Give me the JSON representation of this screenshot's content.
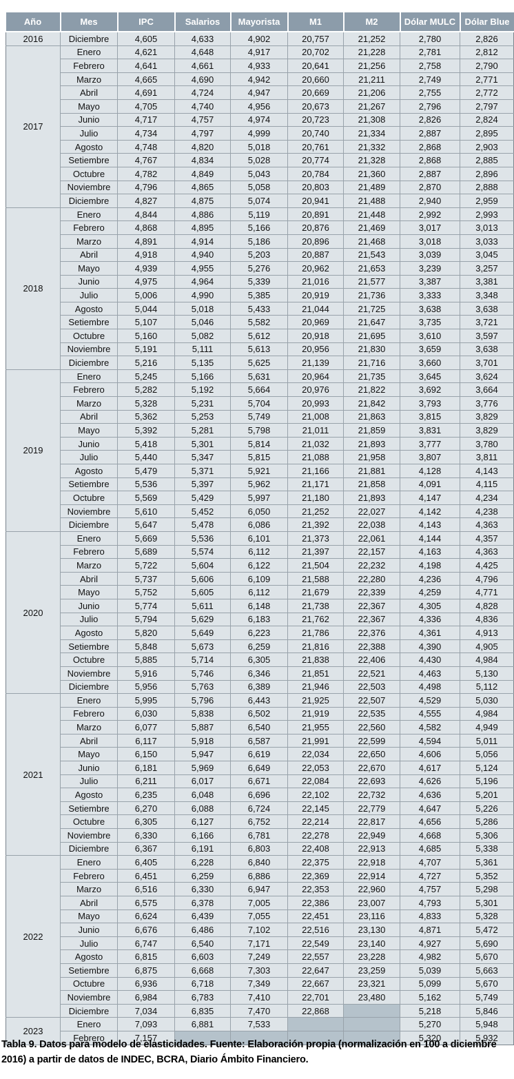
{
  "colors": {
    "header_bg": "#8c9caa",
    "header_text": "#ffffff",
    "row_bg": "#dee4e8",
    "empty_bg": "#b5c2cb",
    "grid": "#98a2aa",
    "outer": "#79838c",
    "outer_soft": "#98a2aa"
  },
  "caption": "Tabla 9. Datos para modelo de elasticidades. Fuente: Elaboración propia (normalización en 100 a diciembre 2016) a partir de datos de INDEC, BCRA, Diario Ámbito Financiero.",
  "table": {
    "columns": [
      "Año",
      "Mes",
      "IPC",
      "Salarios",
      "Mayorista",
      "M1",
      "M2",
      "Dólar MULC",
      "Dólar Blue"
    ],
    "groups": [
      {
        "year": "2016",
        "rows": [
          {
            "mes": "Diciembre",
            "v": [
              "4,605",
              "4,633",
              "4,902",
              "20,757",
              "21,252",
              "2,780",
              "2,826"
            ]
          }
        ]
      },
      {
        "year": "2017",
        "rows": [
          {
            "mes": "Enero",
            "v": [
              "4,621",
              "4,648",
              "4,917",
              "20,702",
              "21,228",
              "2,781",
              "2,812"
            ]
          },
          {
            "mes": "Febrero",
            "v": [
              "4,641",
              "4,661",
              "4,933",
              "20,641",
              "21,256",
              "2,758",
              "2,790"
            ]
          },
          {
            "mes": "Marzo",
            "v": [
              "4,665",
              "4,690",
              "4,942",
              "20,660",
              "21,211",
              "2,749",
              "2,771"
            ]
          },
          {
            "mes": "Abril",
            "v": [
              "4,691",
              "4,724",
              "4,947",
              "20,669",
              "21,206",
              "2,755",
              "2,772"
            ]
          },
          {
            "mes": "Mayo",
            "v": [
              "4,705",
              "4,740",
              "4,956",
              "20,673",
              "21,267",
              "2,796",
              "2,797"
            ]
          },
          {
            "mes": "Junio",
            "v": [
              "4,717",
              "4,757",
              "4,974",
              "20,723",
              "21,308",
              "2,826",
              "2,824"
            ]
          },
          {
            "mes": "Julio",
            "v": [
              "4,734",
              "4,797",
              "4,999",
              "20,740",
              "21,334",
              "2,887",
              "2,895"
            ]
          },
          {
            "mes": "Agosto",
            "v": [
              "4,748",
              "4,820",
              "5,018",
              "20,761",
              "21,332",
              "2,868",
              "2,903"
            ]
          },
          {
            "mes": "Setiembre",
            "v": [
              "4,767",
              "4,834",
              "5,028",
              "20,774",
              "21,328",
              "2,868",
              "2,885"
            ]
          },
          {
            "mes": "Octubre",
            "v": [
              "4,782",
              "4,849",
              "5,043",
              "20,784",
              "21,360",
              "2,887",
              "2,896"
            ]
          },
          {
            "mes": "Noviembre",
            "v": [
              "4,796",
              "4,865",
              "5,058",
              "20,803",
              "21,489",
              "2,870",
              "2,888"
            ]
          },
          {
            "mes": "Diciembre",
            "v": [
              "4,827",
              "4,875",
              "5,074",
              "20,941",
              "21,488",
              "2,940",
              "2,959"
            ]
          }
        ]
      },
      {
        "year": "2018",
        "rows": [
          {
            "mes": "Enero",
            "v": [
              "4,844",
              "4,886",
              "5,119",
              "20,891",
              "21,448",
              "2,992",
              "2,993"
            ]
          },
          {
            "mes": "Febrero",
            "v": [
              "4,868",
              "4,895",
              "5,166",
              "20,876",
              "21,469",
              "3,017",
              "3,013"
            ]
          },
          {
            "mes": "Marzo",
            "v": [
              "4,891",
              "4,914",
              "5,186",
              "20,896",
              "21,468",
              "3,018",
              "3,033"
            ]
          },
          {
            "mes": "Abril",
            "v": [
              "4,918",
              "4,940",
              "5,203",
              "20,887",
              "21,543",
              "3,039",
              "3,045"
            ]
          },
          {
            "mes": "Mayo",
            "v": [
              "4,939",
              "4,955",
              "5,276",
              "20,962",
              "21,653",
              "3,239",
              "3,257"
            ]
          },
          {
            "mes": "Junio",
            "v": [
              "4,975",
              "4,964",
              "5,339",
              "21,016",
              "21,577",
              "3,387",
              "3,381"
            ]
          },
          {
            "mes": "Julio",
            "v": [
              "5,006",
              "4,990",
              "5,385",
              "20,919",
              "21,736",
              "3,333",
              "3,348"
            ]
          },
          {
            "mes": "Agosto",
            "v": [
              "5,044",
              "5,018",
              "5,433",
              "21,044",
              "21,725",
              "3,638",
              "3,638"
            ]
          },
          {
            "mes": "Setiembre",
            "v": [
              "5,107",
              "5,046",
              "5,582",
              "20,969",
              "21,647",
              "3,735",
              "3,721"
            ]
          },
          {
            "mes": "Octubre",
            "v": [
              "5,160",
              "5,082",
              "5,612",
              "20,918",
              "21,695",
              "3,610",
              "3,597"
            ]
          },
          {
            "mes": "Noviembre",
            "v": [
              "5,191",
              "5,111",
              "5,613",
              "20,956",
              "21,830",
              "3,659",
              "3,638"
            ]
          },
          {
            "mes": "Diciembre",
            "v": [
              "5,216",
              "5,135",
              "5,625",
              "21,139",
              "21,716",
              "3,660",
              "3,701"
            ]
          }
        ]
      },
      {
        "year": "2019",
        "rows": [
          {
            "mes": "Enero",
            "v": [
              "5,245",
              "5,166",
              "5,631",
              "20,964",
              "21,735",
              "3,645",
              "3,624"
            ]
          },
          {
            "mes": "Febrero",
            "v": [
              "5,282",
              "5,192",
              "5,664",
              "20,976",
              "21,822",
              "3,692",
              "3,664"
            ]
          },
          {
            "mes": "Marzo",
            "v": [
              "5,328",
              "5,231",
              "5,704",
              "20,993",
              "21,842",
              "3,793",
              "3,776"
            ]
          },
          {
            "mes": "Abril",
            "v": [
              "5,362",
              "5,253",
              "5,749",
              "21,008",
              "21,863",
              "3,815",
              "3,829"
            ]
          },
          {
            "mes": "Mayo",
            "v": [
              "5,392",
              "5,281",
              "5,798",
              "21,011",
              "21,859",
              "3,831",
              "3,829"
            ]
          },
          {
            "mes": "Junio",
            "v": [
              "5,418",
              "5,301",
              "5,814",
              "21,032",
              "21,893",
              "3,777",
              "3,780"
            ]
          },
          {
            "mes": "Julio",
            "v": [
              "5,440",
              "5,347",
              "5,815",
              "21,088",
              "21,958",
              "3,807",
              "3,811"
            ]
          },
          {
            "mes": "Agosto",
            "v": [
              "5,479",
              "5,371",
              "5,921",
              "21,166",
              "21,881",
              "4,128",
              "4,143"
            ]
          },
          {
            "mes": "Setiembre",
            "v": [
              "5,536",
              "5,397",
              "5,962",
              "21,171",
              "21,858",
              "4,091",
              "4,115"
            ]
          },
          {
            "mes": "Octubre",
            "v": [
              "5,569",
              "5,429",
              "5,997",
              "21,180",
              "21,893",
              "4,147",
              "4,234"
            ]
          },
          {
            "mes": "Noviembre",
            "v": [
              "5,610",
              "5,452",
              "6,050",
              "21,252",
              "22,027",
              "4,142",
              "4,238"
            ]
          },
          {
            "mes": "Diciembre",
            "v": [
              "5,647",
              "5,478",
              "6,086",
              "21,392",
              "22,038",
              "4,143",
              "4,363"
            ]
          }
        ]
      },
      {
        "year": "2020",
        "rows": [
          {
            "mes": "Enero",
            "v": [
              "5,669",
              "5,536",
              "6,101",
              "21,373",
              "22,061",
              "4,144",
              "4,357"
            ]
          },
          {
            "mes": "Febrero",
            "v": [
              "5,689",
              "5,574",
              "6,112",
              "21,397",
              "22,157",
              "4,163",
              "4,363"
            ]
          },
          {
            "mes": "Marzo",
            "v": [
              "5,722",
              "5,604",
              "6,122",
              "21,504",
              "22,232",
              "4,198",
              "4,425"
            ]
          },
          {
            "mes": "Abril",
            "v": [
              "5,737",
              "5,606",
              "6,109",
              "21,588",
              "22,280",
              "4,236",
              "4,796"
            ]
          },
          {
            "mes": "Mayo",
            "v": [
              "5,752",
              "5,605",
              "6,112",
              "21,679",
              "22,339",
              "4,259",
              "4,771"
            ]
          },
          {
            "mes": "Junio",
            "v": [
              "5,774",
              "5,611",
              "6,148",
              "21,738",
              "22,367",
              "4,305",
              "4,828"
            ]
          },
          {
            "mes": "Julio",
            "v": [
              "5,794",
              "5,629",
              "6,183",
              "21,762",
              "22,367",
              "4,336",
              "4,836"
            ]
          },
          {
            "mes": "Agosto",
            "v": [
              "5,820",
              "5,649",
              "6,223",
              "21,786",
              "22,376",
              "4,361",
              "4,913"
            ]
          },
          {
            "mes": "Setiembre",
            "v": [
              "5,848",
              "5,673",
              "6,259",
              "21,816",
              "22,388",
              "4,390",
              "4,905"
            ]
          },
          {
            "mes": "Octubre",
            "v": [
              "5,885",
              "5,714",
              "6,305",
              "21,838",
              "22,406",
              "4,430",
              "4,984"
            ]
          },
          {
            "mes": "Noviembre",
            "v": [
              "5,916",
              "5,746",
              "6,346",
              "21,851",
              "22,521",
              "4,463",
              "5,130"
            ]
          },
          {
            "mes": "Diciembre",
            "v": [
              "5,956",
              "5,763",
              "6,389",
              "21,946",
              "22,503",
              "4,498",
              "5,112"
            ]
          }
        ]
      },
      {
        "year": "2021",
        "rows": [
          {
            "mes": "Enero",
            "v": [
              "5,995",
              "5,796",
              "6,443",
              "21,925",
              "22,507",
              "4,529",
              "5,030"
            ]
          },
          {
            "mes": "Febrero",
            "v": [
              "6,030",
              "5,838",
              "6,502",
              "21,919",
              "22,535",
              "4,555",
              "4,984"
            ]
          },
          {
            "mes": "Marzo",
            "v": [
              "6,077",
              "5,887",
              "6,540",
              "21,955",
              "22,560",
              "4,582",
              "4,949"
            ]
          },
          {
            "mes": "Abril",
            "v": [
              "6,117",
              "5,918",
              "6,587",
              "21,991",
              "22,599",
              "4,594",
              "5,011"
            ]
          },
          {
            "mes": "Mayo",
            "v": [
              "6,150",
              "5,947",
              "6,619",
              "22,034",
              "22,650",
              "4,606",
              "5,056"
            ]
          },
          {
            "mes": "Junio",
            "v": [
              "6,181",
              "5,969",
              "6,649",
              "22,053",
              "22,670",
              "4,617",
              "5,124"
            ]
          },
          {
            "mes": "Julio",
            "v": [
              "6,211",
              "6,017",
              "6,671",
              "22,084",
              "22,693",
              "4,626",
              "5,196"
            ]
          },
          {
            "mes": "Agosto",
            "v": [
              "6,235",
              "6,048",
              "6,696",
              "22,102",
              "22,732",
              "4,636",
              "5,201"
            ]
          },
          {
            "mes": "Setiembre",
            "v": [
              "6,270",
              "6,088",
              "6,724",
              "22,145",
              "22,779",
              "4,647",
              "5,226"
            ]
          },
          {
            "mes": "Octubre",
            "v": [
              "6,305",
              "6,127",
              "6,752",
              "22,214",
              "22,817",
              "4,656",
              "5,286"
            ]
          },
          {
            "mes": "Noviembre",
            "v": [
              "6,330",
              "6,166",
              "6,781",
              "22,278",
              "22,949",
              "4,668",
              "5,306"
            ]
          },
          {
            "mes": "Diciembre",
            "v": [
              "6,367",
              "6,191",
              "6,803",
              "22,408",
              "22,913",
              "4,685",
              "5,338"
            ]
          }
        ]
      },
      {
        "year": "2022",
        "rows": [
          {
            "mes": "Enero",
            "v": [
              "6,405",
              "6,228",
              "6,840",
              "22,375",
              "22,918",
              "4,707",
              "5,361"
            ]
          },
          {
            "mes": "Febrero",
            "v": [
              "6,451",
              "6,259",
              "6,886",
              "22,369",
              "22,914",
              "4,727",
              "5,352"
            ]
          },
          {
            "mes": "Marzo",
            "v": [
              "6,516",
              "6,330",
              "6,947",
              "22,353",
              "22,960",
              "4,757",
              "5,298"
            ]
          },
          {
            "mes": "Abril",
            "v": [
              "6,575",
              "6,378",
              "7,005",
              "22,386",
              "23,007",
              "4,793",
              "5,301"
            ]
          },
          {
            "mes": "Mayo",
            "v": [
              "6,624",
              "6,439",
              "7,055",
              "22,451",
              "23,116",
              "4,833",
              "5,328"
            ]
          },
          {
            "mes": "Junio",
            "v": [
              "6,676",
              "6,486",
              "7,102",
              "22,516",
              "23,130",
              "4,871",
              "5,472"
            ]
          },
          {
            "mes": "Julio",
            "v": [
              "6,747",
              "6,540",
              "7,171",
              "22,549",
              "23,140",
              "4,927",
              "5,690"
            ]
          },
          {
            "mes": "Agosto",
            "v": [
              "6,815",
              "6,603",
              "7,249",
              "22,557",
              "23,228",
              "4,982",
              "5,670"
            ]
          },
          {
            "mes": "Setiembre",
            "v": [
              "6,875",
              "6,668",
              "7,303",
              "22,647",
              "23,259",
              "5,039",
              "5,663"
            ]
          },
          {
            "mes": "Octubre",
            "v": [
              "6,936",
              "6,718",
              "7,349",
              "22,667",
              "23,321",
              "5,099",
              "5,670"
            ]
          },
          {
            "mes": "Noviembre",
            "v": [
              "6,984",
              "6,783",
              "7,410",
              "22,701",
              "23,480",
              "5,162",
              "5,749"
            ]
          },
          {
            "mes": "Diciembre",
            "v": [
              "7,034",
              "6,835",
              "7,470",
              "22,868",
              null,
              "5,218",
              "5,846"
            ]
          }
        ]
      },
      {
        "year": "2023",
        "rows": [
          {
            "mes": "Enero",
            "v": [
              "7,093",
              "6,881",
              "7,533",
              null,
              null,
              "5,270",
              "5,948"
            ]
          },
          {
            "mes": "Febrero",
            "v": [
              "7,157",
              null,
              null,
              null,
              null,
              "5,320",
              "5,932"
            ]
          }
        ]
      }
    ]
  }
}
